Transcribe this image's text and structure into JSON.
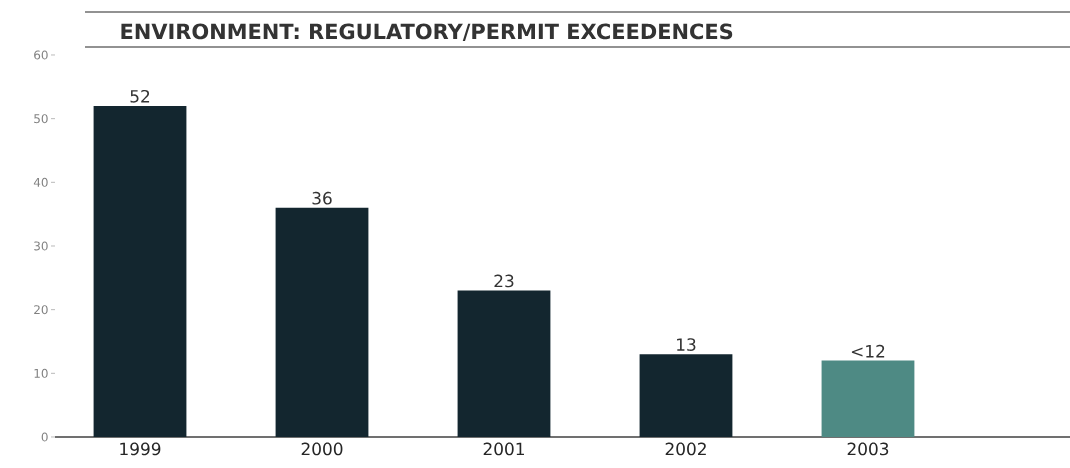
{
  "chart_data": {
    "type": "bar",
    "title": "ENVIRONMENT: REGULATORY/PERMIT EXCEEDENCES",
    "categories": [
      "1999",
      "2000",
      "2001",
      "2002",
      "2003"
    ],
    "values": [
      52,
      36,
      23,
      13,
      12
    ],
    "value_labels": [
      "52",
      "36",
      "23",
      "13",
      "<12"
    ],
    "colors": [
      "#13262f",
      "#13262f",
      "#13262f",
      "#13262f",
      "#4e8a84"
    ],
    "ylim": [
      0,
      60
    ],
    "yticks": [
      0,
      10,
      20,
      30,
      40,
      50,
      60
    ]
  }
}
